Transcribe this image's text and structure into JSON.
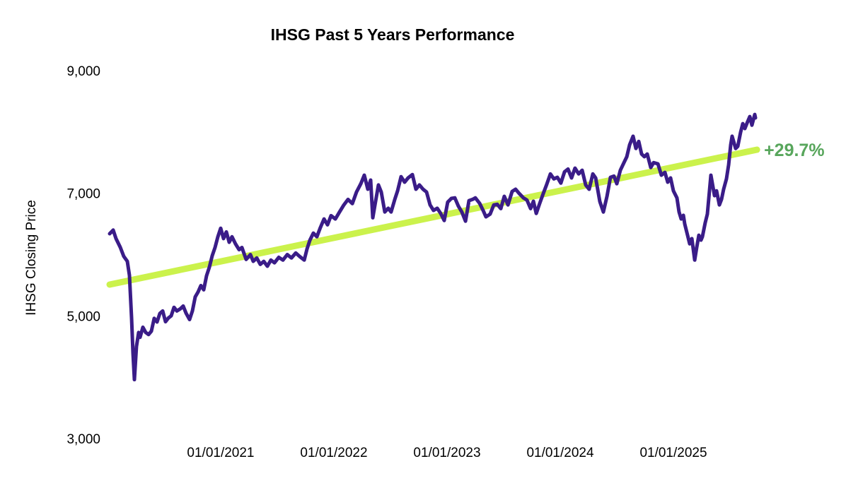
{
  "chart_data": {
    "type": "line",
    "title": "IHSG Past 5 Years Performance",
    "xlabel": "",
    "ylabel": "IHSG Closing Price",
    "xlim": [
      2020.019,
      2025.725
    ],
    "ylim": [
      3000,
      9000
    ],
    "grid": false,
    "legend": "none",
    "axis_spines": false,
    "background": "#ffffff",
    "x_ticks": [
      {
        "label": "01/01/2021",
        "value": 2021
      },
      {
        "label": "01/01/2022",
        "value": 2022
      },
      {
        "label": "01/01/2023",
        "value": 2023
      },
      {
        "label": "01/01/2024",
        "value": 2024
      },
      {
        "label": "01/01/2025",
        "value": 2025
      }
    ],
    "y_ticks": [
      {
        "label": "9,000",
        "value": 9000
      },
      {
        "label": "7,000",
        "value": 7000
      },
      {
        "label": "5,000",
        "value": 5000
      },
      {
        "label": "3,000",
        "value": 3000
      }
    ],
    "series": [
      {
        "name": "IHSG Closing Price",
        "color": "#3A1C88",
        "stroke_width": 5,
        "points": [
          [
            2020.019,
            6340
          ],
          [
            2020.05,
            6400
          ],
          [
            2020.075,
            6260
          ],
          [
            2020.113,
            6120
          ],
          [
            2020.144,
            5970
          ],
          [
            2020.175,
            5890
          ],
          [
            2020.194,
            5660
          ],
          [
            2020.213,
            4965
          ],
          [
            2020.225,
            4390
          ],
          [
            2020.238,
            3960
          ],
          [
            2020.256,
            4500
          ],
          [
            2020.275,
            4730
          ],
          [
            2020.288,
            4650
          ],
          [
            2020.313,
            4815
          ],
          [
            2020.338,
            4730
          ],
          [
            2020.363,
            4695
          ],
          [
            2020.388,
            4750
          ],
          [
            2020.413,
            4960
          ],
          [
            2020.438,
            4900
          ],
          [
            2020.463,
            5040
          ],
          [
            2020.488,
            5080
          ],
          [
            2020.513,
            4905
          ],
          [
            2020.538,
            4965
          ],
          [
            2020.563,
            5000
          ],
          [
            2020.588,
            5140
          ],
          [
            2020.613,
            5080
          ],
          [
            2020.644,
            5115
          ],
          [
            2020.669,
            5160
          ],
          [
            2020.694,
            5045
          ],
          [
            2020.725,
            4940
          ],
          [
            2020.75,
            5080
          ],
          [
            2020.775,
            5310
          ],
          [
            2020.8,
            5390
          ],
          [
            2020.825,
            5495
          ],
          [
            2020.85,
            5425
          ],
          [
            2020.875,
            5655
          ],
          [
            2020.9,
            5795
          ],
          [
            2020.925,
            5980
          ],
          [
            2020.95,
            6115
          ],
          [
            2020.975,
            6290
          ],
          [
            2021.0,
            6430
          ],
          [
            2021.025,
            6260
          ],
          [
            2021.05,
            6370
          ],
          [
            2021.075,
            6200
          ],
          [
            2021.1,
            6290
          ],
          [
            2021.131,
            6175
          ],
          [
            2021.163,
            6080
          ],
          [
            2021.188,
            6115
          ],
          [
            2021.225,
            5920
          ],
          [
            2021.263,
            6000
          ],
          [
            2021.288,
            5890
          ],
          [
            2021.319,
            5945
          ],
          [
            2021.35,
            5840
          ],
          [
            2021.381,
            5890
          ],
          [
            2021.413,
            5810
          ],
          [
            2021.444,
            5910
          ],
          [
            2021.475,
            5865
          ],
          [
            2021.513,
            5955
          ],
          [
            2021.55,
            5910
          ],
          [
            2021.588,
            6000
          ],
          [
            2021.625,
            5945
          ],
          [
            2021.663,
            6025
          ],
          [
            2021.7,
            5965
          ],
          [
            2021.738,
            5910
          ],
          [
            2021.763,
            6095
          ],
          [
            2021.788,
            6235
          ],
          [
            2021.819,
            6350
          ],
          [
            2021.85,
            6290
          ],
          [
            2021.881,
            6440
          ],
          [
            2021.913,
            6580
          ],
          [
            2021.944,
            6485
          ],
          [
            2021.975,
            6635
          ],
          [
            2022.013,
            6580
          ],
          [
            2022.05,
            6695
          ],
          [
            2022.088,
            6810
          ],
          [
            2022.125,
            6900
          ],
          [
            2022.163,
            6830
          ],
          [
            2022.2,
            7020
          ],
          [
            2022.238,
            7155
          ],
          [
            2022.269,
            7295
          ],
          [
            2022.3,
            7065
          ],
          [
            2022.325,
            7215
          ],
          [
            2022.344,
            6600
          ],
          [
            2022.369,
            6870
          ],
          [
            2022.394,
            7135
          ],
          [
            2022.419,
            7020
          ],
          [
            2022.45,
            6695
          ],
          [
            2022.481,
            6755
          ],
          [
            2022.506,
            6695
          ],
          [
            2022.538,
            6900
          ],
          [
            2022.563,
            7040
          ],
          [
            2022.594,
            7270
          ],
          [
            2022.625,
            7180
          ],
          [
            2022.656,
            7250
          ],
          [
            2022.694,
            7305
          ],
          [
            2022.725,
            7065
          ],
          [
            2022.756,
            7135
          ],
          [
            2022.788,
            7065
          ],
          [
            2022.819,
            7020
          ],
          [
            2022.85,
            6810
          ],
          [
            2022.881,
            6720
          ],
          [
            2022.913,
            6755
          ],
          [
            2022.944,
            6670
          ],
          [
            2022.975,
            6555
          ],
          [
            2023.006,
            6855
          ],
          [
            2023.038,
            6915
          ],
          [
            2023.069,
            6925
          ],
          [
            2023.1,
            6790
          ],
          [
            2023.131,
            6695
          ],
          [
            2023.163,
            6545
          ],
          [
            2023.194,
            6880
          ],
          [
            2023.225,
            6900
          ],
          [
            2023.25,
            6925
          ],
          [
            2023.288,
            6835
          ],
          [
            2023.319,
            6720
          ],
          [
            2023.344,
            6615
          ],
          [
            2023.381,
            6660
          ],
          [
            2023.413,
            6810
          ],
          [
            2023.444,
            6820
          ],
          [
            2023.475,
            6750
          ],
          [
            2023.506,
            6950
          ],
          [
            2023.538,
            6810
          ],
          [
            2023.575,
            7030
          ],
          [
            2023.606,
            7065
          ],
          [
            2023.638,
            6995
          ],
          [
            2023.675,
            6925
          ],
          [
            2023.706,
            6890
          ],
          [
            2023.738,
            6750
          ],
          [
            2023.763,
            6870
          ],
          [
            2023.788,
            6670
          ],
          [
            2023.819,
            6835
          ],
          [
            2023.85,
            6995
          ],
          [
            2023.881,
            7145
          ],
          [
            2023.913,
            7315
          ],
          [
            2023.944,
            7235
          ],
          [
            2023.975,
            7260
          ],
          [
            2024.006,
            7165
          ],
          [
            2024.038,
            7350
          ],
          [
            2024.069,
            7395
          ],
          [
            2024.1,
            7250
          ],
          [
            2024.131,
            7410
          ],
          [
            2024.163,
            7315
          ],
          [
            2024.194,
            7375
          ],
          [
            2024.225,
            7135
          ],
          [
            2024.256,
            7065
          ],
          [
            2024.288,
            7315
          ],
          [
            2024.313,
            7250
          ],
          [
            2024.35,
            6865
          ],
          [
            2024.381,
            6695
          ],
          [
            2024.413,
            6950
          ],
          [
            2024.444,
            7260
          ],
          [
            2024.475,
            7280
          ],
          [
            2024.5,
            7155
          ],
          [
            2024.531,
            7375
          ],
          [
            2024.563,
            7500
          ],
          [
            2024.588,
            7595
          ],
          [
            2024.613,
            7790
          ],
          [
            2024.644,
            7930
          ],
          [
            2024.669,
            7730
          ],
          [
            2024.694,
            7845
          ],
          [
            2024.719,
            7640
          ],
          [
            2024.744,
            7595
          ],
          [
            2024.769,
            7640
          ],
          [
            2024.8,
            7420
          ],
          [
            2024.825,
            7500
          ],
          [
            2024.863,
            7480
          ],
          [
            2024.894,
            7295
          ],
          [
            2024.925,
            7340
          ],
          [
            2024.95,
            7180
          ],
          [
            2024.975,
            7250
          ],
          [
            2025.0,
            7040
          ],
          [
            2025.031,
            6925
          ],
          [
            2025.05,
            6695
          ],
          [
            2025.069,
            6580
          ],
          [
            2025.088,
            6640
          ],
          [
            2025.1,
            6500
          ],
          [
            2025.125,
            6315
          ],
          [
            2025.144,
            6175
          ],
          [
            2025.163,
            6260
          ],
          [
            2025.188,
            5910
          ],
          [
            2025.206,
            6120
          ],
          [
            2025.225,
            6315
          ],
          [
            2025.244,
            6235
          ],
          [
            2025.256,
            6290
          ],
          [
            2025.281,
            6520
          ],
          [
            2025.3,
            6660
          ],
          [
            2025.331,
            7295
          ],
          [
            2025.35,
            7100
          ],
          [
            2025.363,
            6960
          ],
          [
            2025.381,
            7040
          ],
          [
            2025.406,
            6810
          ],
          [
            2025.425,
            6900
          ],
          [
            2025.444,
            7065
          ],
          [
            2025.469,
            7235
          ],
          [
            2025.488,
            7465
          ],
          [
            2025.506,
            7790
          ],
          [
            2025.519,
            7930
          ],
          [
            2025.55,
            7730
          ],
          [
            2025.569,
            7765
          ],
          [
            2025.594,
            7995
          ],
          [
            2025.613,
            8135
          ],
          [
            2025.631,
            8055
          ],
          [
            2025.656,
            8170
          ],
          [
            2025.675,
            8250
          ],
          [
            2025.694,
            8110
          ],
          [
            2025.719,
            8285
          ],
          [
            2025.725,
            8230
          ]
        ]
      }
    ],
    "trend_line": {
      "name": "linear trend",
      "color": "#CBF24C",
      "stroke_width": 9,
      "start": [
        2020.019,
        5510
      ],
      "end": [
        2025.738,
        7710
      ]
    },
    "annotation": {
      "text": "+29.7%",
      "color": "#58A65C"
    }
  }
}
